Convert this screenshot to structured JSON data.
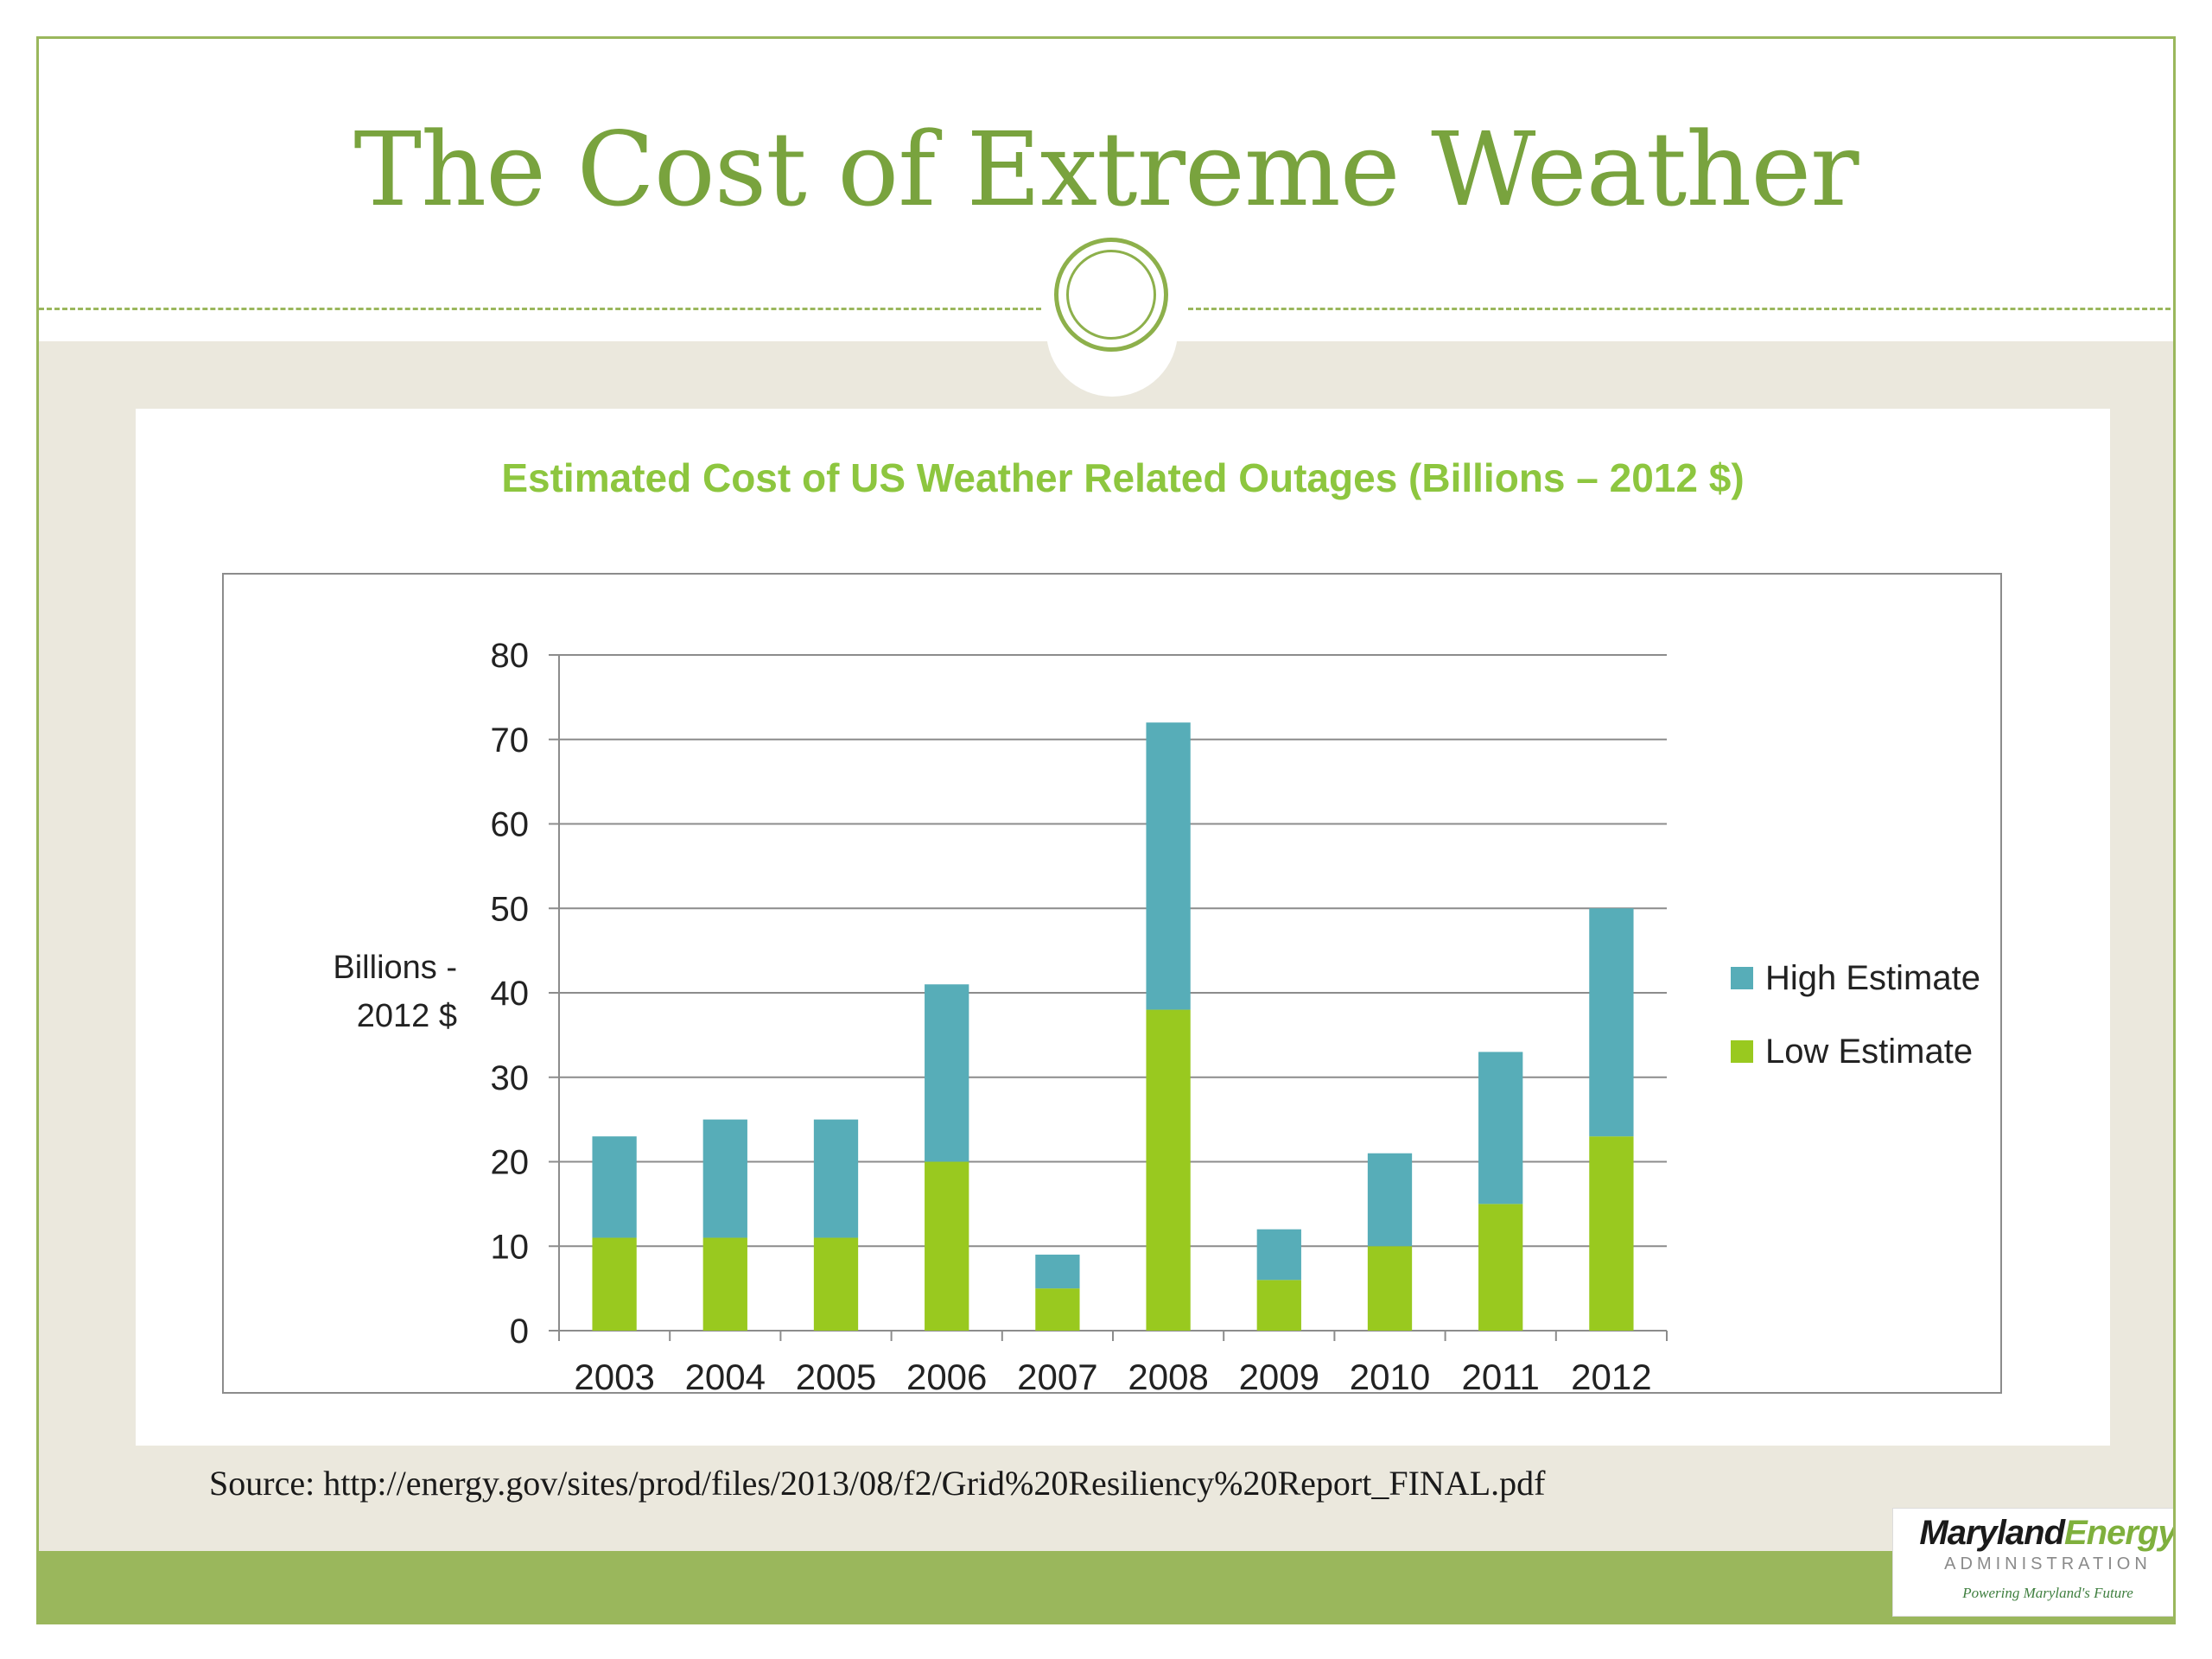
{
  "slide": {
    "title": "The Cost of Extreme Weather",
    "source": "Source: http://energy.gov/sites/prod/files/2013/08/f2/Grid%20Resiliency%20Report_FINAL.pdf",
    "logo": {
      "name_part1": "Maryland",
      "name_part2": "Energy",
      "subtitle": "ADMINISTRATION",
      "tagline": "Powering Maryland's Future"
    }
  },
  "colors": {
    "title": "#79a33e",
    "accent": "#9ab75c",
    "high_estimate": "#57adb8",
    "low_estimate": "#99c91f",
    "chart_title": "#8dc63f"
  },
  "chart_data": {
    "type": "bar",
    "stacked": true,
    "title": "Estimated Cost of US Weather Related Outages (Billions  – 2012 $)",
    "ylabel_lines": [
      "Billions -",
      "2012 $"
    ],
    "xlabel": "",
    "ylim": [
      0,
      80
    ],
    "yticks": [
      0,
      10,
      20,
      30,
      40,
      50,
      60,
      70,
      80
    ],
    "grid": true,
    "legend_position": "right",
    "categories": [
      "2003",
      "2004",
      "2005",
      "2006",
      "2007",
      "2008",
      "2009",
      "2010",
      "2011",
      "2012"
    ],
    "series": [
      {
        "name": "Low Estimate",
        "values": [
          11,
          11,
          11,
          20,
          5,
          38,
          6,
          10,
          15,
          23
        ]
      },
      {
        "name": "High Estimate",
        "values": [
          12,
          14,
          14,
          21,
          4,
          34,
          6,
          11,
          18,
          27
        ]
      }
    ],
    "legend_order": [
      "High Estimate",
      "Low Estimate"
    ]
  }
}
